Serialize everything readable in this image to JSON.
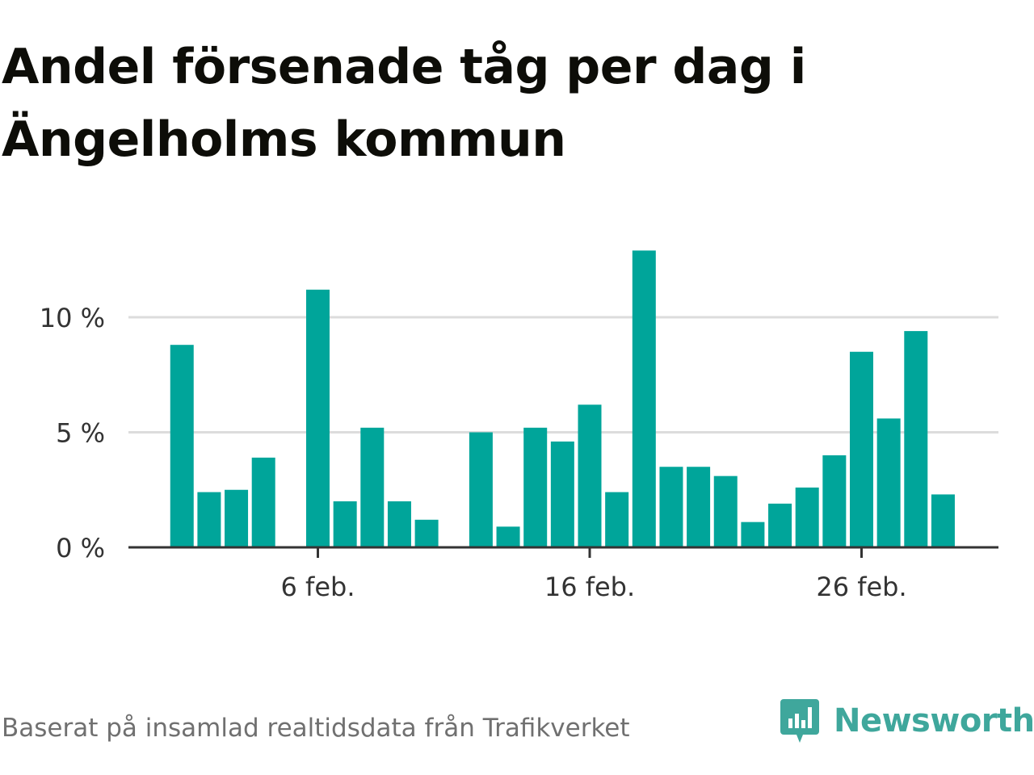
{
  "title": "Andel försenade tåg per dag i Ängelholms kommun",
  "footer": {
    "source": "Baserat på insamlad realtidsdata från Trafikverket",
    "brand": "Newsworthy"
  },
  "colors": {
    "bar": "#00a59a",
    "title": "#0d0d08",
    "grid": "#dcdcdc",
    "axis": "#333333",
    "tick_label": "#333333",
    "brand": "#3fa79c"
  },
  "chart_data": {
    "type": "bar",
    "x_unit": "day of February",
    "x": [
      1,
      2,
      3,
      4,
      5,
      6,
      7,
      8,
      9,
      10,
      11,
      12,
      13,
      14,
      15,
      16,
      17,
      18,
      19,
      20,
      21,
      22,
      23,
      24,
      25,
      26,
      27,
      28,
      29
    ],
    "values": [
      8.8,
      2.4,
      2.5,
      3.9,
      null,
      11.2,
      2.0,
      5.2,
      2.0,
      1.2,
      null,
      5.0,
      0.9,
      5.2,
      4.6,
      6.2,
      2.4,
      12.9,
      3.5,
      3.5,
      3.1,
      1.1,
      1.9,
      2.6,
      4.0,
      8.5,
      5.6,
      9.4,
      2.3
    ],
    "y_unit": "%",
    "ylim": [
      0,
      13
    ],
    "yticks": [
      {
        "value": 0,
        "label": "0 %"
      },
      {
        "value": 5,
        "label": "5 %"
      },
      {
        "value": 10,
        "label": "10 %"
      }
    ],
    "xticks": [
      {
        "value": 6,
        "label": "6 feb."
      },
      {
        "value": 16,
        "label": "16 feb."
      },
      {
        "value": 26,
        "label": "26 feb."
      }
    ],
    "grid": true,
    "legend": "none"
  }
}
